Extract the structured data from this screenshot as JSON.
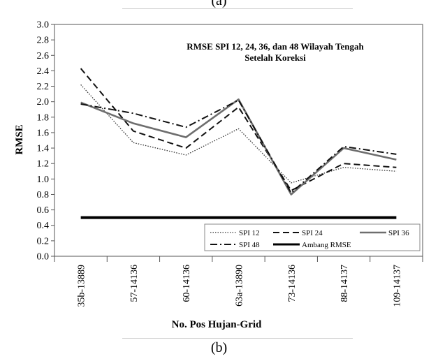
{
  "figure": {
    "caption_top": "(a)",
    "caption_bottom": "(b)"
  },
  "chart_data": {
    "type": "line",
    "title": "RMSE SPI 12, 24, 36, dan 48 Wilayah Tengah",
    "subtitle": "Setelah Koreksi",
    "xlabel": "No. Pos Hujan-Grid",
    "ylabel": "RMSE",
    "ylim": [
      0,
      3.0
    ],
    "ytick_step": 0.2,
    "grid": false,
    "legend_position": "bottom-right",
    "categories": [
      "35b-13889",
      "57-14136",
      "60-14136",
      "63a-13890",
      "73-14136",
      "88-14137",
      "109-14137"
    ],
    "series": [
      {
        "name": "SPI 12",
        "style": "dotted",
        "color": "#333333",
        "values": [
          2.22,
          1.47,
          1.31,
          1.65,
          0.95,
          1.15,
          1.1
        ]
      },
      {
        "name": "SPI 24",
        "style": "dashed",
        "color": "#111111",
        "values": [
          2.43,
          1.62,
          1.4,
          1.93,
          0.85,
          1.2,
          1.15
        ]
      },
      {
        "name": "SPI 36",
        "style": "solid-thick-gray",
        "color": "#6e6e6e",
        "values": [
          1.99,
          1.72,
          1.54,
          2.03,
          0.8,
          1.4,
          1.25
        ]
      },
      {
        "name": "SPI 48",
        "style": "dashdot",
        "color": "#111111",
        "values": [
          1.97,
          1.85,
          1.67,
          2.02,
          0.82,
          1.42,
          1.32
        ]
      },
      {
        "name": "Ambang RMSE",
        "style": "solid-thick-black",
        "color": "#000000",
        "values": [
          0.5,
          0.5,
          0.5,
          0.5,
          0.5,
          0.5,
          0.5
        ]
      }
    ]
  }
}
